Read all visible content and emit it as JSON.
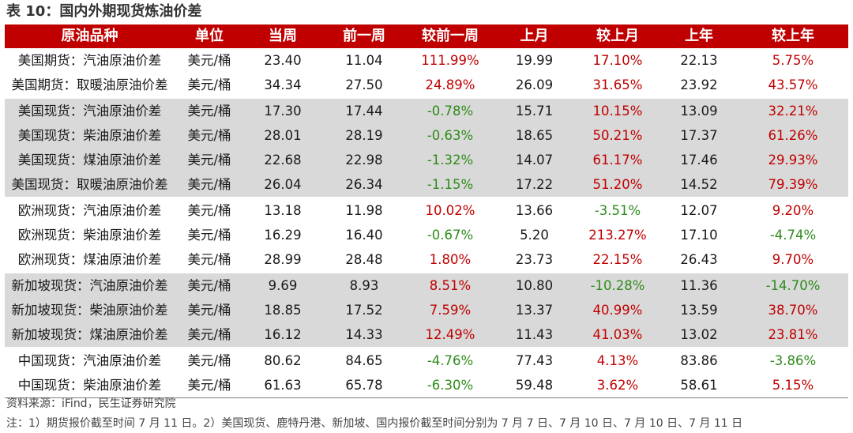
{
  "title": "表 10：国内外期现货炼油价差",
  "columns": [
    "原油品种",
    "单位",
    "当周",
    "前一周",
    "较前一周",
    "上月",
    "较上月",
    "上年",
    "较上年"
  ],
  "rows": [
    [
      "美国期货：汽油原油价差",
      "美元/桶",
      "23.40",
      "11.04",
      "111.99%",
      "19.99",
      "17.10%",
      "22.13",
      "5.75%"
    ],
    [
      "美国期货：取暖油原油价差",
      "美元/桶",
      "34.34",
      "27.50",
      "24.89%",
      "26.09",
      "31.65%",
      "23.92",
      "43.57%"
    ],
    [
      "美国现货：汽油原油价差",
      "美元/桶",
      "17.30",
      "17.44",
      "-0.78%",
      "15.71",
      "10.15%",
      "13.09",
      "32.21%"
    ],
    [
      "美国现货：柴油原油价差",
      "美元/桶",
      "28.01",
      "28.19",
      "-0.63%",
      "18.65",
      "50.21%",
      "17.37",
      "61.26%"
    ],
    [
      "美国现货：煤油原油价差",
      "美元/桶",
      "22.68",
      "22.98",
      "-1.32%",
      "14.07",
      "61.17%",
      "17.46",
      "29.93%"
    ],
    [
      "美国现货：取暖油原油价差",
      "美元/桶",
      "26.04",
      "26.34",
      "-1.15%",
      "17.22",
      "51.20%",
      "14.52",
      "79.39%"
    ],
    [
      "欧洲现货：汽油原油价差",
      "美元/桶",
      "13.18",
      "11.98",
      "10.02%",
      "13.66",
      "-3.51%",
      "12.07",
      "9.20%"
    ],
    [
      "欧洲现货：柴油原油价差",
      "美元/桶",
      "16.29",
      "16.40",
      "-0.67%",
      "5.20",
      "213.27%",
      "17.10",
      "-4.74%"
    ],
    [
      "欧洲现货：煤油原油价差",
      "美元/桶",
      "28.99",
      "28.48",
      "1.80%",
      "23.73",
      "22.15%",
      "26.43",
      "9.70%"
    ],
    [
      "新加坡现货：汽油原油价差",
      "美元/桶",
      "9.69",
      "8.93",
      "8.51%",
      "10.80",
      "-10.28%",
      "11.36",
      "-14.70%"
    ],
    [
      "新加坡现货：柴油原油价差",
      "美元/桶",
      "18.85",
      "17.52",
      "7.59%",
      "13.37",
      "40.99%",
      "13.59",
      "38.70%"
    ],
    [
      "新加坡现货：煤油原油价差",
      "美元/桶",
      "16.12",
      "14.33",
      "12.49%",
      "11.43",
      "41.03%",
      "13.02",
      "23.81%"
    ],
    [
      "中国现货：汽油原油价差",
      "美元/桶",
      "80.62",
      "84.65",
      "-4.76%",
      "77.43",
      "4.13%",
      "83.86",
      "-3.86%"
    ],
    [
      "中国现货：柴油原油价差",
      "美元/桶",
      "61.63",
      "65.78",
      "-6.30%",
      "59.48",
      "3.62%",
      "58.61",
      "5.15%"
    ]
  ],
  "source": "资料来源：iFind，民生证券研究院",
  "note": "注：1）期货报价截至时间 7 月 11 日。2）美国现货、鹿特丹港、新加坡、国内报价截至时间分别为 7 月 7 日、7 月 10 日、7 月 10 日、7 月 11 日",
  "colors": {
    "header_bg": "#c00000",
    "positive_change": "#c00000",
    "negative_change": "#2e8b1a",
    "shaded_group_bg": "#d9d9d9"
  }
}
